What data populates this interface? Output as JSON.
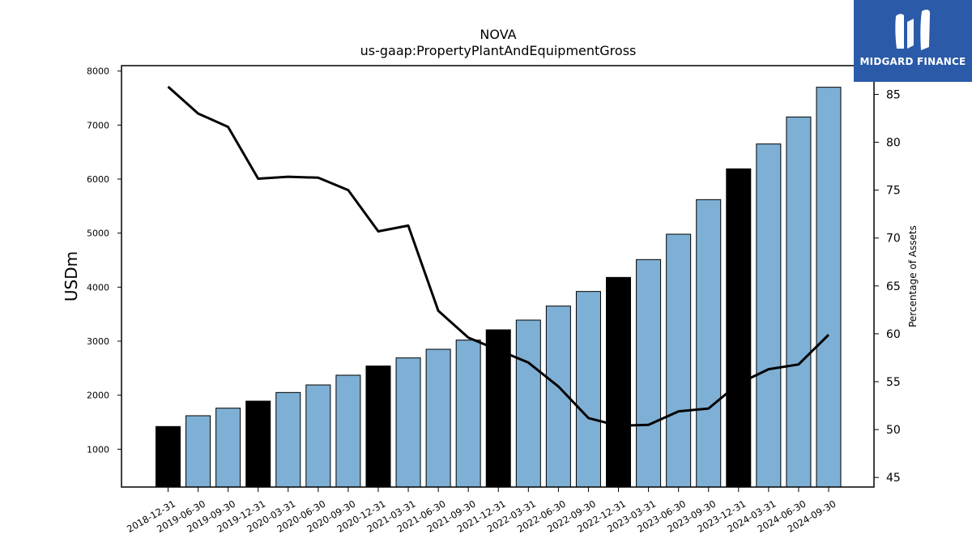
{
  "logo": {
    "name": "MIDGARD FINANCE",
    "background": "#2a5aa8"
  },
  "chart_data": {
    "type": "bar",
    "title": "NOVA",
    "subtitle": "us-gaap:PropertyPlantAndEquipmentGross",
    "ylabel": "USDm",
    "y2label": "Percentage of Assets",
    "ylim": [
      300,
      8100
    ],
    "y2lim": [
      44,
      88
    ],
    "yticks": [
      1000,
      2000,
      3000,
      4000,
      5000,
      6000,
      7000,
      8000
    ],
    "y2ticks": [
      45,
      50,
      55,
      60,
      65,
      70,
      75,
      80,
      85
    ],
    "categories": [
      "2018-12-31",
      "2019-06-30",
      "2019-09-30",
      "2019-12-31",
      "2020-03-31",
      "2020-06-30",
      "2020-09-30",
      "2020-12-31",
      "2021-03-31",
      "2021-06-30",
      "2021-09-30",
      "2021-12-31",
      "2022-03-31",
      "2022-06-30",
      "2022-09-30",
      "2022-12-31",
      "2023-03-31",
      "2023-06-30",
      "2023-09-30",
      "2023-12-31",
      "2024-03-31",
      "2024-06-30",
      "2024-09-30"
    ],
    "series": [
      {
        "type": "bar",
        "axis": "left",
        "values": [
          1420,
          1620,
          1760,
          1890,
          2050,
          2190,
          2370,
          2540,
          2690,
          2850,
          3020,
          3210,
          3390,
          3650,
          3920,
          4180,
          4510,
          4980,
          5620,
          6190,
          6650,
          7150,
          7700
        ]
      },
      {
        "type": "line",
        "axis": "right",
        "values": [
          85.8,
          83.0,
          81.6,
          76.2,
          76.4,
          76.3,
          75.0,
          70.7,
          71.3,
          62.4,
          59.6,
          58.3,
          57.0,
          54.5,
          51.2,
          50.4,
          50.5,
          51.9,
          52.2,
          54.8,
          56.3,
          56.8,
          59.9
        ]
      }
    ],
    "colors": {
      "bar": "#7eb0d5",
      "bar_year_end": "#000000",
      "line": "#000000"
    },
    "grid": false
  }
}
